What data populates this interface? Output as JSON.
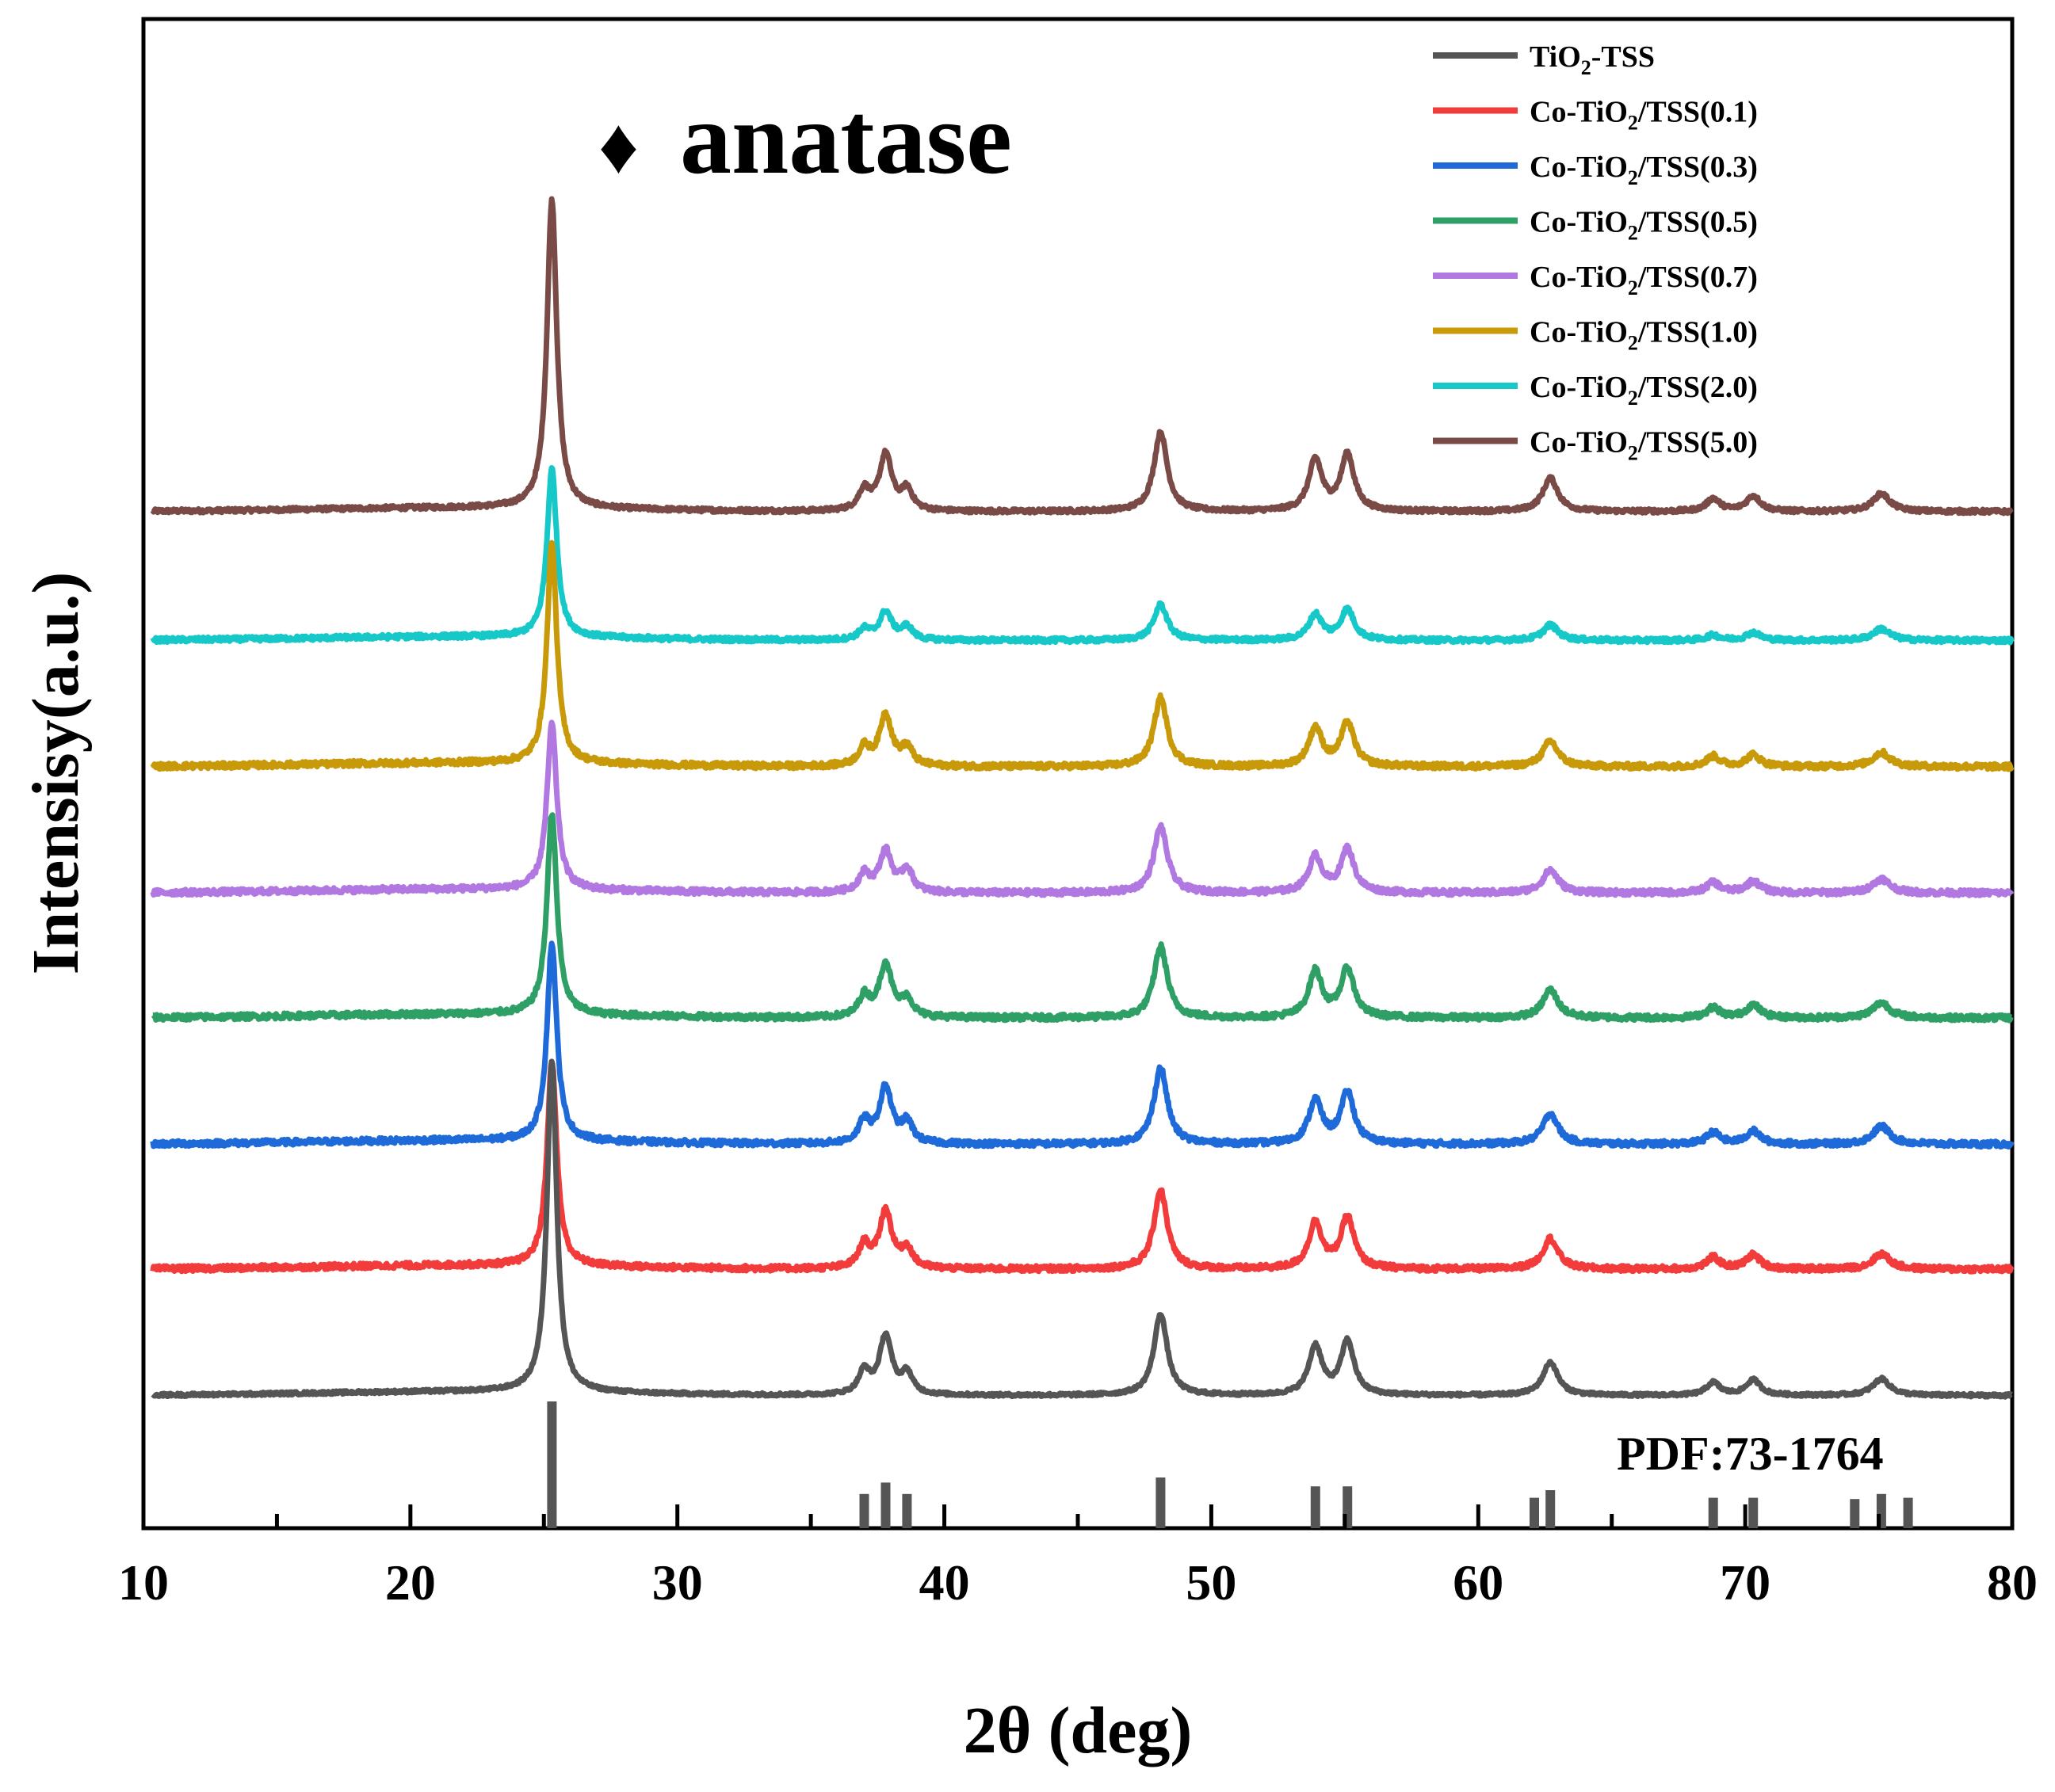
{
  "chart_data": {
    "type": "line",
    "title": "",
    "xlabel": "2θ (deg)",
    "ylabel": "Intensisy(a.u.)",
    "xlim": [
      10,
      80
    ],
    "ylim": [
      0,
      10
    ],
    "x_ticks": [
      10,
      20,
      30,
      40,
      50,
      60,
      70,
      80
    ],
    "x_tick_labels": [
      "10",
      "20",
      "30",
      "40",
      "50",
      "60",
      "70",
      "80"
    ],
    "annotation": {
      "symbol": "♦",
      "text": "anatase"
    },
    "reference_label": "PDF:73-1764",
    "reference_sticks": [
      {
        "x": 25.3,
        "h": 1.0
      },
      {
        "x": 37.0,
        "h": 0.27
      },
      {
        "x": 37.8,
        "h": 0.36
      },
      {
        "x": 38.6,
        "h": 0.27
      },
      {
        "x": 48.1,
        "h": 0.4
      },
      {
        "x": 53.9,
        "h": 0.33
      },
      {
        "x": 55.1,
        "h": 0.33
      },
      {
        "x": 62.1,
        "h": 0.24
      },
      {
        "x": 62.7,
        "h": 0.3
      },
      {
        "x": 68.8,
        "h": 0.24
      },
      {
        "x": 70.3,
        "h": 0.24
      },
      {
        "x": 74.1,
        "h": 0.23
      },
      {
        "x": 75.1,
        "h": 0.27
      },
      {
        "x": 76.1,
        "h": 0.24
      }
    ],
    "peak_positions": [
      25.3,
      37.0,
      37.8,
      38.6,
      48.1,
      53.9,
      55.1,
      62.7,
      68.8,
      70.3,
      75.1
    ],
    "series": [
      {
        "name": "TiO2-TSS",
        "label_main": "TiO",
        "label_sub": "2",
        "label_rest": "-TSS",
        "color": "#555555",
        "baseline": 1.04,
        "noise": 0.012,
        "scale": 1.0,
        "peak_heights": [
          2.6,
          0.18,
          0.46,
          0.16,
          0.64,
          0.38,
          0.42,
          0.26,
          0.1,
          0.12,
          0.13
        ]
      },
      {
        "name": "Co-TiO2/TSS(0.1)",
        "label_main": "Co-TiO",
        "label_sub": "2",
        "label_rest": "/TSS(0.1)",
        "color": "#f23b3b",
        "baseline": 2.03,
        "noise": 0.022,
        "scale": 1.0,
        "peak_heights": [
          1.6,
          0.18,
          0.45,
          0.15,
          0.62,
          0.36,
          0.4,
          0.24,
          0.09,
          0.11,
          0.12
        ]
      },
      {
        "name": "Co-TiO2/TSS(0.3)",
        "label_main": "Co-TiO",
        "label_sub": "2",
        "label_rest": "/TSS(0.3)",
        "color": "#1e6ad9",
        "baseline": 3.01,
        "noise": 0.022,
        "scale": 1.0,
        "peak_heights": [
          1.55,
          0.17,
          0.44,
          0.16,
          0.6,
          0.34,
          0.4,
          0.24,
          0.09,
          0.1,
          0.14
        ]
      },
      {
        "name": "Co-TiO2/TSS(0.5)",
        "label_main": "Co-TiO",
        "label_sub": "2",
        "label_rest": "/TSS(0.5)",
        "color": "#2fa065",
        "baseline": 4.0,
        "noise": 0.022,
        "scale": 1.0,
        "peak_heights": [
          1.58,
          0.16,
          0.42,
          0.14,
          0.56,
          0.36,
          0.38,
          0.22,
          0.08,
          0.1,
          0.12
        ]
      },
      {
        "name": "Co-TiO2/TSS(0.7)",
        "label_main": "Co-TiO",
        "label_sub": "2",
        "label_rest": "/TSS(0.7)",
        "color": "#b078e0",
        "baseline": 3.98,
        "noise": 0.022,
        "scale": 1.0,
        "offset_fix": 1.0,
        "peak_heights": [
          1.3,
          0.14,
          0.32,
          0.18,
          0.52,
          0.28,
          0.34,
          0.18,
          0.08,
          0.09,
          0.11
        ]
      },
      {
        "name": "Co-TiO2/TSS(1.0)",
        "label_main": "Co-TiO",
        "label_sub": "2",
        "label_rest": "/TSS(1.0)",
        "color": "#c89a0a",
        "baseline": 5.97,
        "noise": 0.022,
        "scale": 1.0,
        "peak_heights": [
          1.72,
          0.14,
          0.4,
          0.14,
          0.54,
          0.3,
          0.34,
          0.2,
          0.08,
          0.09,
          0.11
        ]
      },
      {
        "name": "Co-TiO2/TSS(2.0)",
        "label_main": "Co-TiO",
        "label_sub": "2",
        "label_rest": "/TSS(2.0)",
        "color": "#16c8c8",
        "baseline": 6.96,
        "noise": 0.018,
        "scale": 1.0,
        "peak_heights": [
          1.32,
          0.08,
          0.22,
          0.1,
          0.28,
          0.2,
          0.24,
          0.12,
          0.04,
          0.06,
          0.09
        ]
      },
      {
        "name": "Co-TiO2/TSS(5.0)",
        "label_main": "Co-TiO",
        "label_sub": "2",
        "label_rest": "/TSS(5.0)",
        "color": "#7a4a46",
        "baseline": 7.97,
        "noise": 0.016,
        "scale": 1.0,
        "peak_heights": [
          2.42,
          0.16,
          0.44,
          0.16,
          0.62,
          0.4,
          0.44,
          0.26,
          0.1,
          0.12,
          0.14
        ]
      }
    ]
  }
}
